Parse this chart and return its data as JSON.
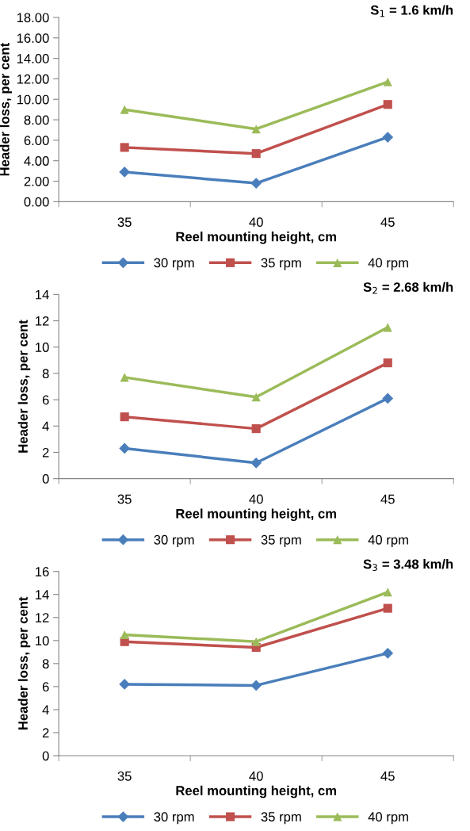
{
  "chart_data": [
    {
      "type": "line",
      "title": "S$_{1}$ = 1.6 km/h",
      "xlabel": "Reel mounting height, cm",
      "ylabel": "Header loss, per cent",
      "categories": [
        "35",
        "40",
        "45"
      ],
      "ylim": [
        0,
        18
      ],
      "yticks": [
        {
          "value": 0,
          "label": "0.00"
        },
        {
          "value": 2,
          "label": "2.00"
        },
        {
          "value": 4,
          "label": "4.00"
        },
        {
          "value": 6,
          "label": "6.00"
        },
        {
          "value": 8,
          "label": "8.00"
        },
        {
          "value": 10,
          "label": "10.00"
        },
        {
          "value": 12,
          "label": "12.00"
        },
        {
          "value": 14,
          "label": "14.00"
        },
        {
          "value": 16,
          "label": "16.00"
        },
        {
          "value": 18,
          "label": "18.00"
        }
      ],
      "legend": "bottom",
      "grid": false,
      "series": [
        {
          "name": "30 rpm",
          "color": "#4a7ebb",
          "marker": "diamond",
          "values": [
            2.9,
            1.8,
            6.3
          ]
        },
        {
          "name": "35 rpm",
          "color": "#c0504d",
          "marker": "square",
          "values": [
            5.3,
            4.7,
            9.5
          ]
        },
        {
          "name": "40 rpm",
          "color": "#9bbb59",
          "marker": "triangle",
          "values": [
            9.0,
            7.1,
            11.7
          ]
        }
      ]
    },
    {
      "type": "line",
      "title": "S$_{2}$ = 2.68 km/h",
      "xlabel": "Reel mounting height, cm",
      "ylabel": "Header loss, per cent",
      "categories": [
        "35",
        "40",
        "45"
      ],
      "ylim": [
        0,
        14
      ],
      "yticks": [
        0,
        2,
        4,
        6,
        8,
        10,
        12,
        14
      ],
      "legend": "bottom",
      "grid": false,
      "series": [
        {
          "name": "30 rpm",
          "color": "#4a7ebb",
          "marker": "diamond",
          "values": [
            2.3,
            1.2,
            6.1
          ]
        },
        {
          "name": "35 rpm",
          "color": "#c0504d",
          "marker": "square",
          "values": [
            4.7,
            3.8,
            8.8
          ]
        },
        {
          "name": "40 rpm",
          "color": "#9bbb59",
          "marker": "triangle",
          "values": [
            7.7,
            6.2,
            11.5
          ]
        }
      ]
    },
    {
      "type": "line",
      "title": "S$_{3}$ = 3.48 km/h",
      "xlabel": "Reel mounting height, cm",
      "ylabel": "Header loss, per cent",
      "categories": [
        "35",
        "40",
        "45"
      ],
      "ylim": [
        0,
        16
      ],
      "yticks": [
        0,
        2,
        4,
        6,
        8,
        10,
        12,
        14,
        16
      ],
      "legend": "bottom",
      "grid": false,
      "series": [
        {
          "name": "30 rpm",
          "color": "#4a7ebb",
          "marker": "diamond",
          "values": [
            6.2,
            6.1,
            8.9
          ]
        },
        {
          "name": "35 rpm",
          "color": "#c0504d",
          "marker": "square",
          "values": [
            9.9,
            9.4,
            12.8
          ]
        },
        {
          "name": "40 rpm",
          "color": "#9bbb59",
          "marker": "triangle",
          "values": [
            10.5,
            9.9,
            14.2
          ]
        }
      ]
    }
  ]
}
